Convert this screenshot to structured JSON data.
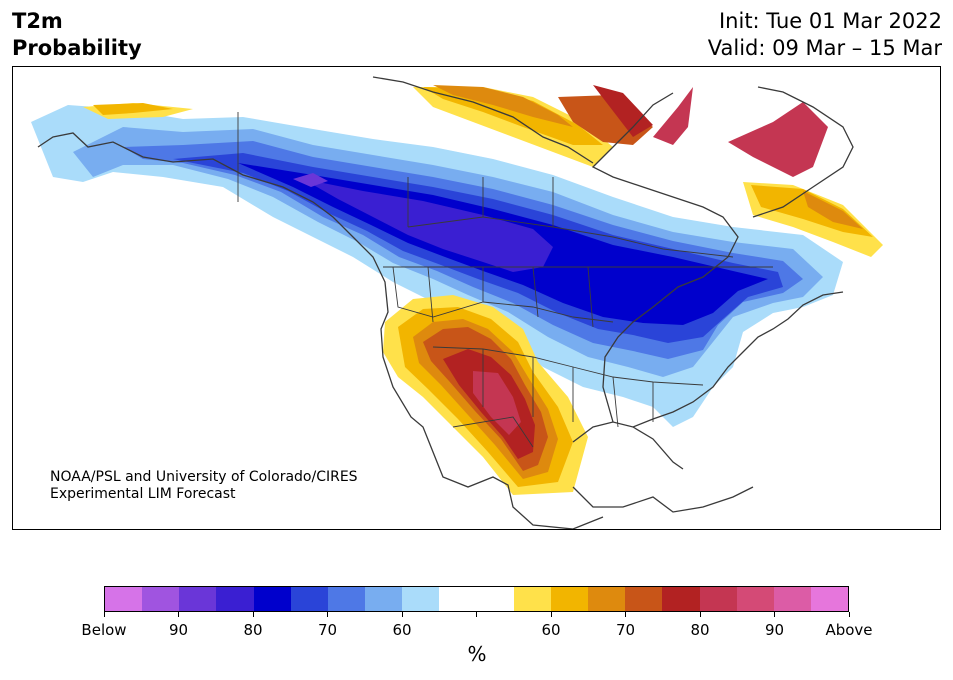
{
  "title": {
    "line1": "T2m",
    "line2": "Probability",
    "init": "Init: Tue 01 Mar 2022",
    "valid": "Valid: 09 Mar – 15 Mar"
  },
  "credit": {
    "line1": "NOAA/PSL and University of Colorado/CIRES",
    "line2": "Experimental LIM Forecast"
  },
  "colorbar": {
    "colors": [
      "#d673e8",
      "#a054e0",
      "#6a36d8",
      "#3a1fd2",
      "#0000cc",
      "#2a44d8",
      "#4e78e6",
      "#78adf0",
      "#aadcfa",
      "#ffffff",
      "#ffffff",
      "#ffe14a",
      "#f2b500",
      "#de8a0e",
      "#c85518",
      "#b22222",
      "#c43652",
      "#d44a76",
      "#dc5ca6",
      "#e676dc"
    ],
    "tick_labels": [
      "Below",
      "90",
      "80",
      "70",
      "60",
      "",
      "60",
      "70",
      "80",
      "90",
      "Above"
    ],
    "unit": "%"
  }
}
